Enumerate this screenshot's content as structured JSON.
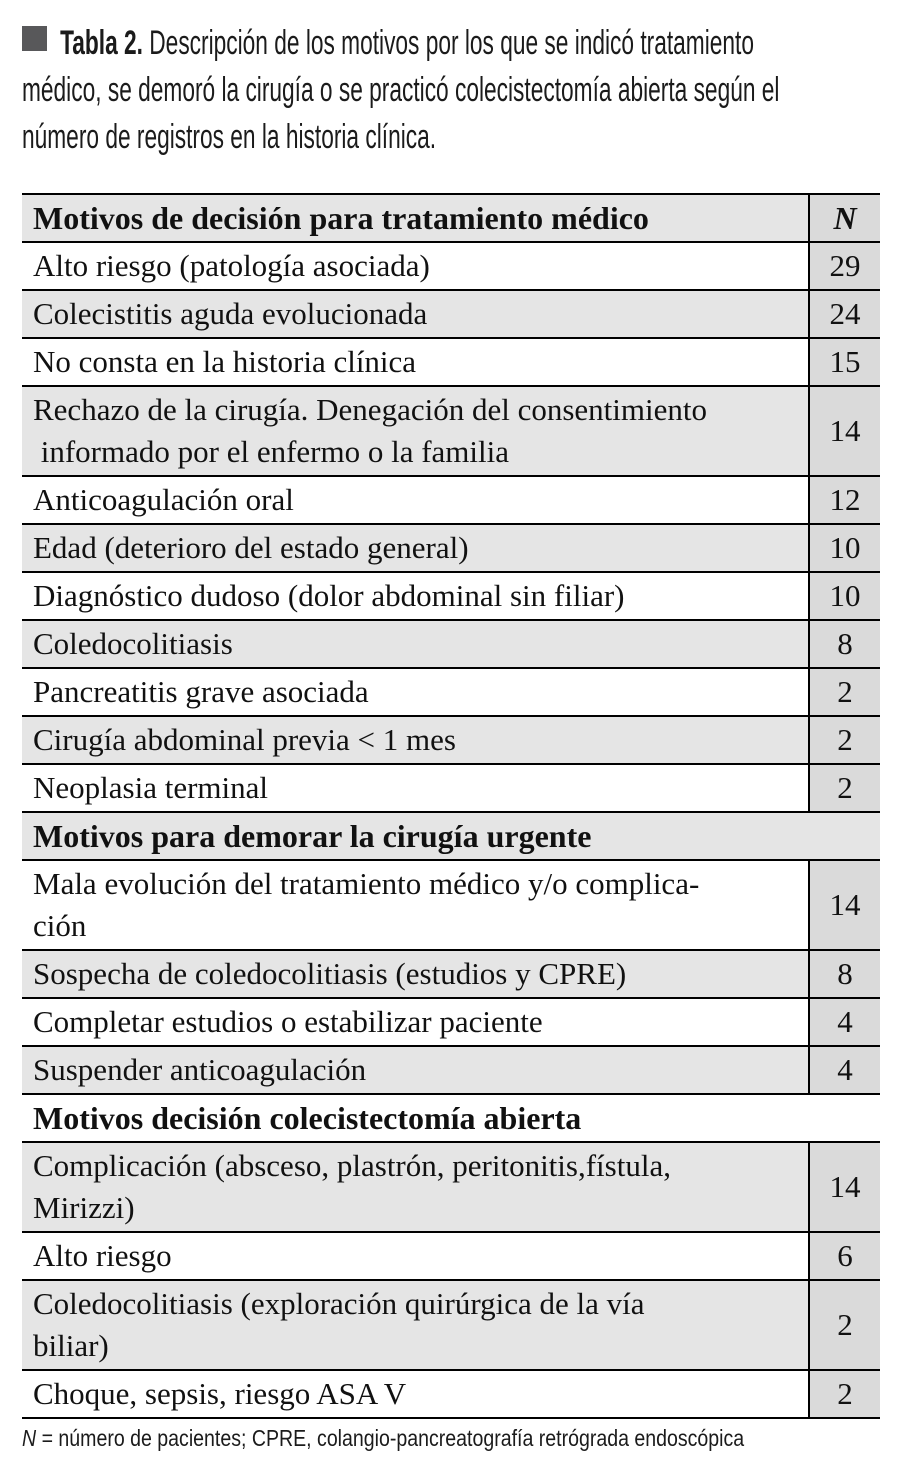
{
  "caption": {
    "marker": "square-bullet",
    "label": "Tabla 2.",
    "text": " Descripción de los motivos por los que se indicó tratamiento\nmédico, se demoró la cirugía o se practicó colecistectomía abierta según el\nnúmero de registros en la historia clínica."
  },
  "table": {
    "sections": [
      {
        "header": "Motivos de decisión para tratamiento médico",
        "n_header": "N",
        "rows": [
          {
            "label": "Alto riesgo (patología asociada)",
            "n": "29"
          },
          {
            "label": "Colecistitis aguda evolucionada",
            "n": "24"
          },
          {
            "label": "No consta en la historia clínica",
            "n": "15"
          },
          {
            "label": "Rechazo de la cirugía. Denegación del consentimiento\n informado por el enfermo o la familia",
            "n": "14"
          },
          {
            "label": "Anticoagulación oral",
            "n": "12"
          },
          {
            "label": "Edad (deterioro del estado general)",
            "n": "10"
          },
          {
            "label": "Diagnóstico dudoso (dolor abdominal sin filiar)",
            "n": "10"
          },
          {
            "label": "Coledocolitiasis",
            "n": "8"
          },
          {
            "label": "Pancreatitis grave asociada",
            "n": "2"
          },
          {
            "label": "Cirugía abdominal previa < 1 mes",
            "n": "2"
          },
          {
            "label": "Neoplasia terminal",
            "n": "2"
          }
        ]
      },
      {
        "header": "Motivos para demorar la cirugía urgente",
        "rows": [
          {
            "label": "Mala evolución del tratamiento médico y/o complica-\nción",
            "n": "14"
          },
          {
            "label": "Sospecha de coledocolitiasis (estudios y CPRE)",
            "n": "8"
          },
          {
            "label": "Completar estudios o estabilizar paciente",
            "n": "4"
          },
          {
            "label": "Suspender anticoagulación",
            "n": "4"
          }
        ]
      },
      {
        "header": "Motivos decisión colecistectomía abierta",
        "rows": [
          {
            "label": "Complicación (absceso, plastrón, peritonitis,fístula,\nMirizzi)",
            "n": "14"
          },
          {
            "label": "Alto riesgo",
            "n": "6"
          },
          {
            "label": "Coledocolitiasis (exploración quirúrgica de la vía\nbiliar)",
            "n": "2"
          },
          {
            "label": "Choque, sepsis, riesgo ASA V",
            "n": "2"
          }
        ]
      }
    ]
  },
  "footnote": {
    "symbol": "N",
    "text": " = número de pacientes; CPRE, colangio-pancreatografía retrógrada endoscópica"
  },
  "colors": {
    "row_shade": "#e5e5e5",
    "n_column_shade": "#dadada",
    "caption_square": "#58585a",
    "border": "#000000"
  }
}
